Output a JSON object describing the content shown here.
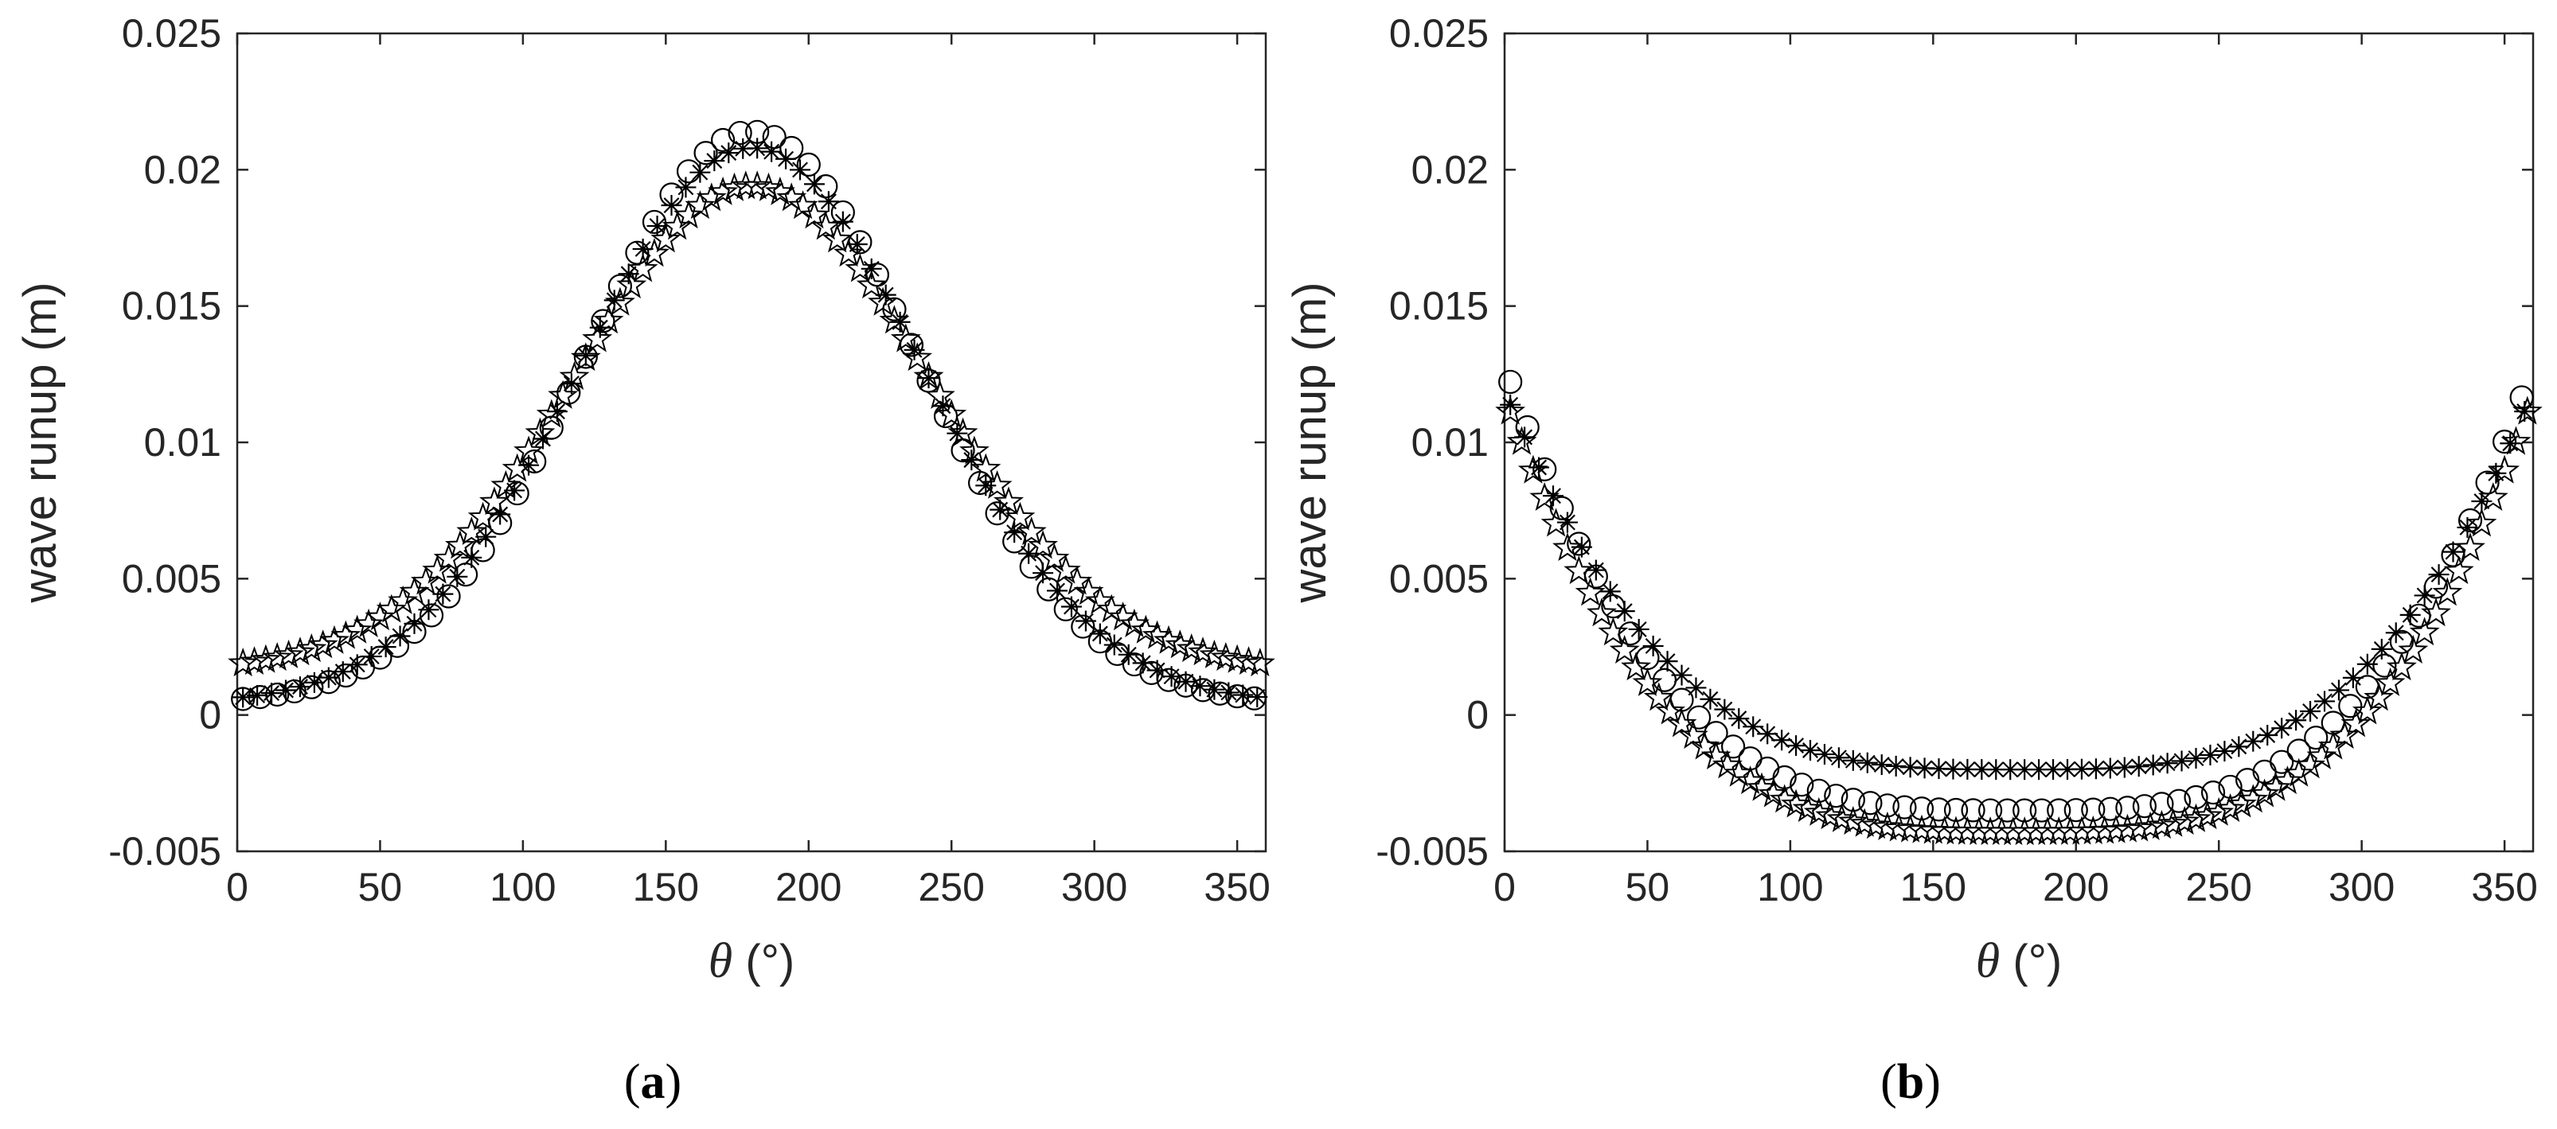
{
  "colors": {
    "marker": "#000000",
    "axis": "#262626",
    "background": "#ffffff"
  },
  "chart_data": [
    {
      "panel": "(a)",
      "panel_open": "(",
      "panel_letter": "a",
      "panel_close": ")",
      "type": "scatter",
      "xlabel_symbol": "θ",
      "xlabel_unit": " (°)",
      "ylabel": "wave runup (m)",
      "xlim": [
        0,
        360
      ],
      "ylim": [
        -0.005,
        0.025
      ],
      "xticks": [
        0,
        50,
        100,
        150,
        200,
        250,
        300,
        350
      ],
      "xtick_labels": [
        "0",
        "50",
        "100",
        "150",
        "200",
        "250",
        "300",
        "350"
      ],
      "yticks": [
        -0.005,
        0,
        0.005,
        0.01,
        0.015,
        0.02,
        0.025
      ],
      "ytick_labels": [
        "-0.005",
        "0",
        "0.005",
        "0.01",
        "0.015",
        "0.02",
        "0.025"
      ],
      "series": [
        {
          "name": "circle",
          "marker": "circle",
          "profile": {
            "kind": "bell",
            "base": 0.0004,
            "peak": 0.0214,
            "center": 180,
            "width": 58
          },
          "step": 6
        },
        {
          "name": "asterisk",
          "marker": "asterisk",
          "profile": {
            "kind": "bell",
            "base": 0.0004,
            "peak": 0.0208,
            "center": 180,
            "width": 60
          },
          "step": 5
        },
        {
          "name": "star",
          "marker": "star",
          "profile": {
            "kind": "bell",
            "base": 0.0016,
            "peak": 0.0194,
            "center": 180,
            "width": 62
          },
          "step": 4
        }
      ]
    },
    {
      "panel": "(b)",
      "panel_open": "(",
      "panel_letter": "b",
      "panel_close": ")",
      "type": "scatter",
      "xlabel_symbol": "θ",
      "xlabel_unit": " (°)",
      "ylabel": "wave runup (m)",
      "xlim": [
        0,
        360
      ],
      "ylim": [
        -0.005,
        0.025
      ],
      "xticks": [
        0,
        50,
        100,
        150,
        200,
        250,
        300,
        350
      ],
      "xtick_labels": [
        "0",
        "50",
        "100",
        "150",
        "200",
        "250",
        "300",
        "350"
      ],
      "yticks": [
        -0.005,
        0,
        0.005,
        0.01,
        0.015,
        0.02,
        0.025
      ],
      "ytick_labels": [
        "-0.005",
        "0",
        "0.005",
        "0.01",
        "0.015",
        "0.02",
        "0.025"
      ],
      "series": [
        {
          "name": "circle",
          "marker": "circle",
          "profile": {
            "kind": "bowl",
            "edge": 0.013,
            "min": -0.0035,
            "center": 180,
            "width": 40
          },
          "step": 6
        },
        {
          "name": "asterisk",
          "marker": "asterisk",
          "profile": {
            "kind": "bowl",
            "edge": 0.012,
            "min": -0.002,
            "center": 180,
            "width": 38
          },
          "step": 5
        },
        {
          "name": "star",
          "marker": "star",
          "profile": {
            "kind": "bowl",
            "edge": 0.012,
            "min": -0.0043,
            "center": 180,
            "width": 44
          },
          "step": 4
        }
      ]
    }
  ]
}
